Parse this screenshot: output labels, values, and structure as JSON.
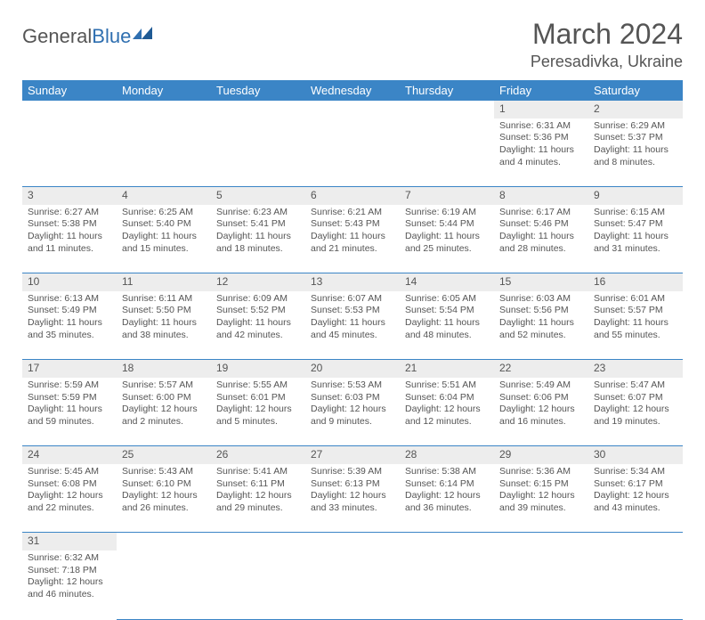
{
  "logo": {
    "text1": "General",
    "text2": "Blue"
  },
  "title": "March 2024",
  "location": "Peresadivka, Ukraine",
  "headers": [
    "Sunday",
    "Monday",
    "Tuesday",
    "Wednesday",
    "Thursday",
    "Friday",
    "Saturday"
  ],
  "colors": {
    "header_bg": "#3b85c6",
    "header_fg": "#ffffff",
    "daynum_bg": "#ededed",
    "text": "#555555",
    "border": "#3b85c6",
    "logo_blue": "#2f6fb0"
  },
  "weeks": [
    [
      null,
      null,
      null,
      null,
      null,
      {
        "n": "1",
        "sr": "Sunrise: 6:31 AM",
        "ss": "Sunset: 5:36 PM",
        "d1": "Daylight: 11 hours",
        "d2": "and 4 minutes."
      },
      {
        "n": "2",
        "sr": "Sunrise: 6:29 AM",
        "ss": "Sunset: 5:37 PM",
        "d1": "Daylight: 11 hours",
        "d2": "and 8 minutes."
      }
    ],
    [
      {
        "n": "3",
        "sr": "Sunrise: 6:27 AM",
        "ss": "Sunset: 5:38 PM",
        "d1": "Daylight: 11 hours",
        "d2": "and 11 minutes."
      },
      {
        "n": "4",
        "sr": "Sunrise: 6:25 AM",
        "ss": "Sunset: 5:40 PM",
        "d1": "Daylight: 11 hours",
        "d2": "and 15 minutes."
      },
      {
        "n": "5",
        "sr": "Sunrise: 6:23 AM",
        "ss": "Sunset: 5:41 PM",
        "d1": "Daylight: 11 hours",
        "d2": "and 18 minutes."
      },
      {
        "n": "6",
        "sr": "Sunrise: 6:21 AM",
        "ss": "Sunset: 5:43 PM",
        "d1": "Daylight: 11 hours",
        "d2": "and 21 minutes."
      },
      {
        "n": "7",
        "sr": "Sunrise: 6:19 AM",
        "ss": "Sunset: 5:44 PM",
        "d1": "Daylight: 11 hours",
        "d2": "and 25 minutes."
      },
      {
        "n": "8",
        "sr": "Sunrise: 6:17 AM",
        "ss": "Sunset: 5:46 PM",
        "d1": "Daylight: 11 hours",
        "d2": "and 28 minutes."
      },
      {
        "n": "9",
        "sr": "Sunrise: 6:15 AM",
        "ss": "Sunset: 5:47 PM",
        "d1": "Daylight: 11 hours",
        "d2": "and 31 minutes."
      }
    ],
    [
      {
        "n": "10",
        "sr": "Sunrise: 6:13 AM",
        "ss": "Sunset: 5:49 PM",
        "d1": "Daylight: 11 hours",
        "d2": "and 35 minutes."
      },
      {
        "n": "11",
        "sr": "Sunrise: 6:11 AM",
        "ss": "Sunset: 5:50 PM",
        "d1": "Daylight: 11 hours",
        "d2": "and 38 minutes."
      },
      {
        "n": "12",
        "sr": "Sunrise: 6:09 AM",
        "ss": "Sunset: 5:52 PM",
        "d1": "Daylight: 11 hours",
        "d2": "and 42 minutes."
      },
      {
        "n": "13",
        "sr": "Sunrise: 6:07 AM",
        "ss": "Sunset: 5:53 PM",
        "d1": "Daylight: 11 hours",
        "d2": "and 45 minutes."
      },
      {
        "n": "14",
        "sr": "Sunrise: 6:05 AM",
        "ss": "Sunset: 5:54 PM",
        "d1": "Daylight: 11 hours",
        "d2": "and 48 minutes."
      },
      {
        "n": "15",
        "sr": "Sunrise: 6:03 AM",
        "ss": "Sunset: 5:56 PM",
        "d1": "Daylight: 11 hours",
        "d2": "and 52 minutes."
      },
      {
        "n": "16",
        "sr": "Sunrise: 6:01 AM",
        "ss": "Sunset: 5:57 PM",
        "d1": "Daylight: 11 hours",
        "d2": "and 55 minutes."
      }
    ],
    [
      {
        "n": "17",
        "sr": "Sunrise: 5:59 AM",
        "ss": "Sunset: 5:59 PM",
        "d1": "Daylight: 11 hours",
        "d2": "and 59 minutes."
      },
      {
        "n": "18",
        "sr": "Sunrise: 5:57 AM",
        "ss": "Sunset: 6:00 PM",
        "d1": "Daylight: 12 hours",
        "d2": "and 2 minutes."
      },
      {
        "n": "19",
        "sr": "Sunrise: 5:55 AM",
        "ss": "Sunset: 6:01 PM",
        "d1": "Daylight: 12 hours",
        "d2": "and 5 minutes."
      },
      {
        "n": "20",
        "sr": "Sunrise: 5:53 AM",
        "ss": "Sunset: 6:03 PM",
        "d1": "Daylight: 12 hours",
        "d2": "and 9 minutes."
      },
      {
        "n": "21",
        "sr": "Sunrise: 5:51 AM",
        "ss": "Sunset: 6:04 PM",
        "d1": "Daylight: 12 hours",
        "d2": "and 12 minutes."
      },
      {
        "n": "22",
        "sr": "Sunrise: 5:49 AM",
        "ss": "Sunset: 6:06 PM",
        "d1": "Daylight: 12 hours",
        "d2": "and 16 minutes."
      },
      {
        "n": "23",
        "sr": "Sunrise: 5:47 AM",
        "ss": "Sunset: 6:07 PM",
        "d1": "Daylight: 12 hours",
        "d2": "and 19 minutes."
      }
    ],
    [
      {
        "n": "24",
        "sr": "Sunrise: 5:45 AM",
        "ss": "Sunset: 6:08 PM",
        "d1": "Daylight: 12 hours",
        "d2": "and 22 minutes."
      },
      {
        "n": "25",
        "sr": "Sunrise: 5:43 AM",
        "ss": "Sunset: 6:10 PM",
        "d1": "Daylight: 12 hours",
        "d2": "and 26 minutes."
      },
      {
        "n": "26",
        "sr": "Sunrise: 5:41 AM",
        "ss": "Sunset: 6:11 PM",
        "d1": "Daylight: 12 hours",
        "d2": "and 29 minutes."
      },
      {
        "n": "27",
        "sr": "Sunrise: 5:39 AM",
        "ss": "Sunset: 6:13 PM",
        "d1": "Daylight: 12 hours",
        "d2": "and 33 minutes."
      },
      {
        "n": "28",
        "sr": "Sunrise: 5:38 AM",
        "ss": "Sunset: 6:14 PM",
        "d1": "Daylight: 12 hours",
        "d2": "and 36 minutes."
      },
      {
        "n": "29",
        "sr": "Sunrise: 5:36 AM",
        "ss": "Sunset: 6:15 PM",
        "d1": "Daylight: 12 hours",
        "d2": "and 39 minutes."
      },
      {
        "n": "30",
        "sr": "Sunrise: 5:34 AM",
        "ss": "Sunset: 6:17 PM",
        "d1": "Daylight: 12 hours",
        "d2": "and 43 minutes."
      }
    ],
    [
      {
        "n": "31",
        "sr": "Sunrise: 6:32 AM",
        "ss": "Sunset: 7:18 PM",
        "d1": "Daylight: 12 hours",
        "d2": "and 46 minutes."
      },
      null,
      null,
      null,
      null,
      null,
      null
    ]
  ]
}
